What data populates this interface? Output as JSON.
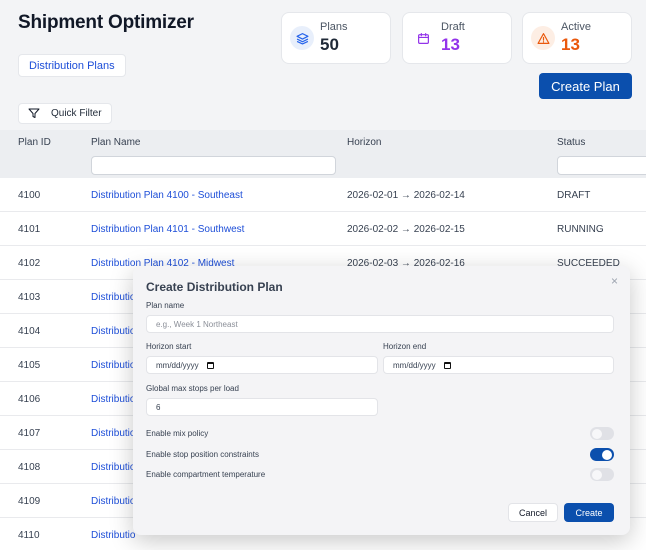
{
  "app": {
    "title": "Shipment Optimizer",
    "tab": "Distribution Plans"
  },
  "stats": [
    {
      "label": "Plans",
      "value": "50",
      "color": "#1f2937",
      "icon": "layers-icon"
    },
    {
      "label": "Draft",
      "value": "13",
      "color": "#9333ea",
      "icon": "calendar-icon"
    },
    {
      "label": "Active",
      "value": "13",
      "color": "#ea580c",
      "icon": "warning-icon"
    }
  ],
  "toolbar": {
    "create_plan": "Create Plan",
    "quick_filter": "Quick Filter"
  },
  "table": {
    "columns": [
      "Plan ID",
      "Plan Name",
      "Horizon",
      "Status"
    ],
    "rows": [
      {
        "id": "4100",
        "name": "Distribution Plan 4100 - Southeast",
        "horizon": "2026-02-01 → 2026-02-14",
        "status": "DRAFT"
      },
      {
        "id": "4101",
        "name": "Distribution Plan 4101 - Southwest",
        "horizon": "2026-02-02 → 2026-02-15",
        "status": "RUNNING"
      },
      {
        "id": "4102",
        "name": "Distribution Plan 4102 - Midwest",
        "horizon": "2026-02-03 → 2026-02-16",
        "status": "SUCCEEDED"
      },
      {
        "id": "4103",
        "name": "Distributio",
        "horizon": "",
        "status": ""
      },
      {
        "id": "4104",
        "name": "Distributio",
        "horizon": "",
        "status": ""
      },
      {
        "id": "4105",
        "name": "Distributio",
        "horizon": "",
        "status": ""
      },
      {
        "id": "4106",
        "name": "Distributio",
        "horizon": "",
        "status": ""
      },
      {
        "id": "4107",
        "name": "Distributio",
        "horizon": "",
        "status": ""
      },
      {
        "id": "4108",
        "name": "Distributio",
        "horizon": "",
        "status": ""
      },
      {
        "id": "4109",
        "name": "Distributio",
        "horizon": "",
        "status": ""
      },
      {
        "id": "4110",
        "name": "Distributio",
        "horizon": "",
        "status": ""
      }
    ]
  },
  "modal": {
    "title": "Create Distribution Plan",
    "close": "×",
    "plan_name_label": "Plan name",
    "plan_name_placeholder": "e.g., Week 1 Northeast",
    "horizon_start_label": "Horizon start",
    "horizon_start_value": "mm/dd/yyyy",
    "horizon_end_label": "Horizon end",
    "horizon_end_value": "mm/dd/yyyy",
    "max_stops_label": "Global max stops per load",
    "max_stops_value": "6",
    "toggles": [
      {
        "label": "Enable mix policy",
        "on": false
      },
      {
        "label": "Enable stop position constraints",
        "on": true
      },
      {
        "label": "Enable compartment temperature",
        "on": false
      }
    ],
    "cancel": "Cancel",
    "create": "Create"
  }
}
